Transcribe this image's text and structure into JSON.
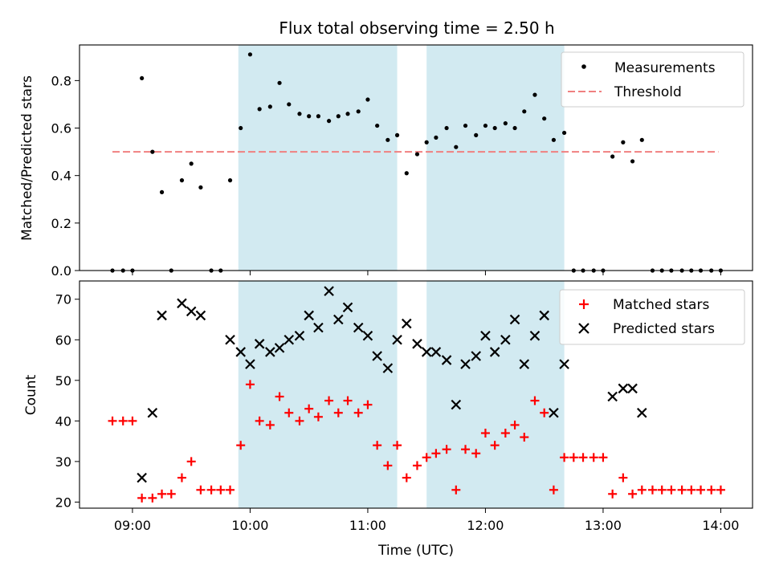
{
  "figure": {
    "title": "Flux total observing time = 2.50 h",
    "xlabel": "Time (UTC)",
    "xticks": [
      {
        "value": 9,
        "label": "09:00"
      },
      {
        "value": 10,
        "label": "10:00"
      },
      {
        "value": 11,
        "label": "11:00"
      },
      {
        "value": 12,
        "label": "12:00"
      },
      {
        "value": 13,
        "label": "13:00"
      },
      {
        "value": 14,
        "label": "14:00"
      }
    ],
    "xlim": [
      8.55,
      14.27
    ],
    "shaded_intervals": [
      [
        9.9,
        11.25
      ],
      [
        11.5,
        12.67
      ]
    ],
    "shade_color": "#add8e6"
  },
  "chart_data": [
    {
      "type": "scatter",
      "ylabel": "Matched/Predicted stars",
      "ylim": [
        0,
        0.95
      ],
      "yticks": [
        {
          "value": 0.0,
          "label": "0.0"
        },
        {
          "value": 0.2,
          "label": "0.2"
        },
        {
          "value": 0.4,
          "label": "0.4"
        },
        {
          "value": 0.6,
          "label": "0.6"
        },
        {
          "value": 0.8,
          "label": "0.8"
        }
      ],
      "threshold": {
        "name": "Threshold",
        "value": 0.5,
        "x_range": [
          8.83,
          13.98
        ],
        "color": "#f08080"
      },
      "legend": {
        "location": "upper right",
        "entries": [
          "Measurements",
          "Threshold"
        ]
      },
      "series": [
        {
          "name": "Measurements",
          "color": "#000000",
          "marker": "dot",
          "x": [
            8.83,
            8.92,
            9.0,
            9.08,
            9.17,
            9.25,
            9.33,
            9.42,
            9.5,
            9.58,
            9.67,
            9.75,
            9.83,
            9.92,
            10.0,
            10.08,
            10.17,
            10.25,
            10.33,
            10.42,
            10.5,
            10.58,
            10.67,
            10.75,
            10.83,
            10.92,
            11.0,
            11.08,
            11.17,
            11.25,
            11.33,
            11.42,
            11.5,
            11.58,
            11.67,
            11.75,
            11.83,
            11.92,
            12.0,
            12.08,
            12.17,
            12.25,
            12.33,
            12.42,
            12.5,
            12.58,
            12.67,
            12.75,
            12.83,
            12.92,
            13.0,
            13.08,
            13.17,
            13.25,
            13.33,
            13.42,
            13.5,
            13.58,
            13.67,
            13.75,
            13.83,
            13.92,
            14.0
          ],
          "y": [
            0,
            0,
            0,
            0.81,
            0.5,
            0.33,
            0,
            0.38,
            0.45,
            0.35,
            0,
            0,
            0.38,
            0.6,
            0.91,
            0.68,
            0.69,
            0.79,
            0.7,
            0.66,
            0.65,
            0.65,
            0.63,
            0.65,
            0.66,
            0.67,
            0.72,
            0.61,
            0.55,
            0.57,
            0.41,
            0.49,
            0.54,
            0.56,
            0.6,
            0.52,
            0.61,
            0.57,
            0.61,
            0.6,
            0.62,
            0.6,
            0.67,
            0.74,
            0.64,
            0.55,
            0.58,
            0,
            0,
            0,
            0,
            0.48,
            0.54,
            0.46,
            0.55,
            0,
            0,
            0,
            0,
            0,
            0,
            0,
            0
          ]
        }
      ]
    },
    {
      "type": "scatter",
      "ylabel": "Count",
      "ylim": [
        18.5,
        74.5
      ],
      "yticks": [
        {
          "value": 20,
          "label": "20"
        },
        {
          "value": 30,
          "label": "30"
        },
        {
          "value": 40,
          "label": "40"
        },
        {
          "value": 50,
          "label": "50"
        },
        {
          "value": 60,
          "label": "60"
        },
        {
          "value": 70,
          "label": "70"
        }
      ],
      "legend": {
        "location": "upper right",
        "entries": [
          "Matched stars",
          "Predicted stars"
        ]
      },
      "series": [
        {
          "name": "Matched stars",
          "color": "#ff0000",
          "marker": "plus",
          "x": [
            8.83,
            8.92,
            9.0,
            9.08,
            9.17,
            9.25,
            9.33,
            9.42,
            9.5,
            9.58,
            9.67,
            9.75,
            9.83,
            9.92,
            10.0,
            10.08,
            10.17,
            10.25,
            10.33,
            10.42,
            10.5,
            10.58,
            10.67,
            10.75,
            10.83,
            10.92,
            11.0,
            11.08,
            11.17,
            11.25,
            11.33,
            11.42,
            11.5,
            11.58,
            11.67,
            11.75,
            11.83,
            11.92,
            12.0,
            12.08,
            12.17,
            12.25,
            12.33,
            12.42,
            12.5,
            12.58,
            12.67,
            12.75,
            12.83,
            12.92,
            13.0,
            13.08,
            13.17,
            13.25,
            13.33,
            13.42,
            13.5,
            13.58,
            13.67,
            13.75,
            13.83,
            13.92,
            14.0
          ],
          "y": [
            40,
            40,
            40,
            21,
            21,
            22,
            22,
            26,
            30,
            23,
            23,
            23,
            23,
            34,
            49,
            40,
            39,
            46,
            42,
            40,
            43,
            41,
            45,
            42,
            45,
            42,
            44,
            34,
            29,
            34,
            26,
            29,
            31,
            32,
            33,
            23,
            33,
            32,
            37,
            34,
            37,
            39,
            36,
            45,
            42,
            23,
            31,
            31,
            31,
            31,
            31,
            22,
            26,
            22,
            23,
            23,
            23,
            23,
            23,
            23,
            23,
            23,
            23
          ]
        },
        {
          "name": "Predicted stars",
          "color": "#000000",
          "marker": "x",
          "x": [
            9.08,
            9.17,
            9.25,
            9.42,
            9.5,
            9.58,
            9.83,
            9.92,
            10.0,
            10.08,
            10.17,
            10.25,
            10.33,
            10.42,
            10.5,
            10.58,
            10.67,
            10.75,
            10.83,
            10.92,
            11.0,
            11.08,
            11.17,
            11.25,
            11.33,
            11.42,
            11.5,
            11.58,
            11.67,
            11.75,
            11.83,
            11.92,
            12.0,
            12.08,
            12.17,
            12.25,
            12.33,
            12.42,
            12.5,
            12.58,
            12.67,
            13.08,
            13.17,
            13.25,
            13.33
          ],
          "y": [
            26,
            42,
            66,
            69,
            67,
            66,
            60,
            57,
            54,
            59,
            57,
            58,
            60,
            61,
            66,
            63,
            72,
            65,
            68,
            63,
            61,
            56,
            53,
            60,
            64,
            59,
            57,
            57,
            55,
            44,
            54,
            56,
            61,
            57,
            60,
            65,
            54,
            61,
            66,
            42,
            54,
            46,
            48,
            48,
            42
          ]
        }
      ]
    }
  ]
}
